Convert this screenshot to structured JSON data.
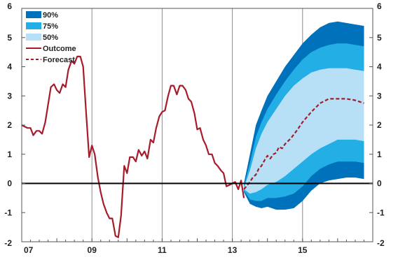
{
  "chart_data": {
    "type": "area",
    "x_tick_labels": [
      "07",
      "09",
      "11",
      "13",
      "15"
    ],
    "x_ticks": [
      2007,
      2009,
      2011,
      2013,
      2015
    ],
    "xlim": [
      2007,
      2017
    ],
    "y_tick_labels": [
      "6",
      "5",
      "4",
      "3",
      "2",
      "1",
      "0",
      "-1",
      "-2"
    ],
    "y_ticks": [
      6,
      5,
      4,
      3,
      2,
      1,
      0,
      -1,
      -2
    ],
    "ylim": [
      -2,
      6
    ],
    "grid": "vertical at year ticks",
    "legend": {
      "placement": "top-left",
      "entries": [
        {
          "label": "90%",
          "kind": "fill",
          "color": "#0071bb"
        },
        {
          "label": "75%",
          "kind": "fill",
          "color": "#23aee5"
        },
        {
          "label": "50%",
          "kind": "fill",
          "color": "#b7e0f7"
        },
        {
          "label": "Outcome",
          "kind": "line",
          "color": "#a61c2a"
        },
        {
          "label": "Forecast",
          "kind": "dashed",
          "color": "#a61c2a"
        }
      ]
    },
    "series": [
      {
        "name": "Outcome",
        "style": "solid",
        "color": "#a61c2a",
        "x": [
          2007.0,
          2007.08,
          2007.17,
          2007.25,
          2007.33,
          2007.42,
          2007.5,
          2007.58,
          2007.67,
          2007.75,
          2007.83,
          2007.92,
          2008.0,
          2008.08,
          2008.17,
          2008.25,
          2008.33,
          2008.42,
          2008.5,
          2008.58,
          2008.67,
          2008.75,
          2008.83,
          2008.92,
          2009.0,
          2009.08,
          2009.17,
          2009.25,
          2009.33,
          2009.42,
          2009.5,
          2009.58,
          2009.67,
          2009.75,
          2009.83,
          2009.92,
          2010.0,
          2010.08,
          2010.17,
          2010.25,
          2010.33,
          2010.42,
          2010.5,
          2010.58,
          2010.67,
          2010.75,
          2010.83,
          2010.92,
          2011.0,
          2011.08,
          2011.17,
          2011.25,
          2011.33,
          2011.42,
          2011.5,
          2011.58,
          2011.67,
          2011.75,
          2011.83,
          2011.92,
          2012.0,
          2012.08,
          2012.17,
          2012.25,
          2012.33,
          2012.42,
          2012.5,
          2012.58,
          2012.67,
          2012.75,
          2012.83,
          2012.92,
          2013.0,
          2013.08,
          2013.17,
          2013.25,
          2013.33
        ],
        "values": [
          2.0,
          1.95,
          1.9,
          1.9,
          1.65,
          1.8,
          1.8,
          1.7,
          2.1,
          2.7,
          3.3,
          3.4,
          3.2,
          3.1,
          3.4,
          3.3,
          3.9,
          4.2,
          4.1,
          4.35,
          4.35,
          4.0,
          2.5,
          0.9,
          1.3,
          1.0,
          0.2,
          -0.3,
          -0.7,
          -1.0,
          -1.2,
          -1.2,
          -1.8,
          -1.85,
          -1.1,
          0.6,
          0.35,
          0.9,
          0.9,
          0.75,
          1.15,
          0.95,
          1.1,
          0.85,
          1.5,
          1.4,
          1.9,
          2.3,
          2.45,
          2.5,
          3.0,
          3.35,
          3.35,
          3.05,
          3.35,
          3.35,
          3.2,
          2.9,
          2.8,
          2.4,
          1.85,
          1.9,
          1.5,
          1.3,
          1.0,
          1.0,
          0.7,
          0.6,
          0.45,
          0.35,
          -0.1,
          -0.05,
          0.0,
          0.05,
          -0.2,
          0.1,
          -0.5
        ]
      },
      {
        "name": "Forecast",
        "style": "dashed",
        "color": "#a61c2a",
        "x": [
          2013.33,
          2013.5,
          2013.58,
          2013.67,
          2013.75,
          2013.83,
          2013.92,
          2014.0,
          2014.08,
          2014.17,
          2014.25,
          2014.33,
          2014.42,
          2014.5,
          2014.67,
          2014.83,
          2015.0,
          2015.25,
          2015.5,
          2015.75,
          2016.0,
          2016.25,
          2016.5,
          2016.75
        ],
        "values": [
          -0.2,
          0.05,
          0.2,
          0.3,
          0.5,
          0.6,
          0.8,
          0.95,
          0.85,
          1.0,
          1.05,
          1.25,
          1.2,
          1.35,
          1.55,
          1.8,
          2.1,
          2.45,
          2.75,
          2.9,
          2.9,
          2.9,
          2.85,
          2.75
        ]
      }
    ],
    "fan_bands": {
      "x": [
        2013.33,
        2013.5,
        2013.67,
        2013.83,
        2014.0,
        2014.25,
        2014.5,
        2014.75,
        2015.0,
        2015.25,
        2015.5,
        2015.75,
        2016.0,
        2016.25,
        2016.5,
        2016.75
      ],
      "bands": [
        {
          "label": "90%",
          "color": "#0071bb",
          "upper": [
            0.0,
            1.0,
            2.0,
            2.5,
            3.0,
            3.5,
            4.0,
            4.4,
            4.8,
            5.1,
            5.35,
            5.5,
            5.55,
            5.5,
            5.45,
            5.4
          ],
          "lower": [
            -0.3,
            -0.7,
            -0.8,
            -0.85,
            -0.8,
            -0.9,
            -0.9,
            -0.85,
            -0.6,
            -0.25,
            0.0,
            0.1,
            0.15,
            0.2,
            0.2,
            0.15
          ]
        },
        {
          "label": "75%",
          "color": "#23aee5",
          "upper": [
            -0.1,
            0.7,
            1.6,
            2.1,
            2.55,
            3.05,
            3.5,
            3.9,
            4.25,
            4.5,
            4.65,
            4.75,
            4.8,
            4.8,
            4.75,
            4.7
          ],
          "lower": [
            -0.25,
            -0.55,
            -0.6,
            -0.6,
            -0.5,
            -0.5,
            -0.45,
            -0.35,
            -0.1,
            0.25,
            0.5,
            0.65,
            0.75,
            0.75,
            0.75,
            0.7
          ]
        },
        {
          "label": "50%",
          "color": "#b7e0f7",
          "upper": [
            -0.15,
            0.45,
            1.2,
            1.7,
            2.1,
            2.55,
            3.0,
            3.35,
            3.6,
            3.8,
            3.9,
            3.95,
            3.95,
            3.95,
            3.9,
            3.85
          ],
          "lower": [
            -0.2,
            -0.35,
            -0.3,
            -0.2,
            -0.05,
            0.05,
            0.25,
            0.5,
            0.75,
            1.0,
            1.2,
            1.35,
            1.5,
            1.5,
            1.5,
            1.45
          ]
        }
      ]
    }
  }
}
